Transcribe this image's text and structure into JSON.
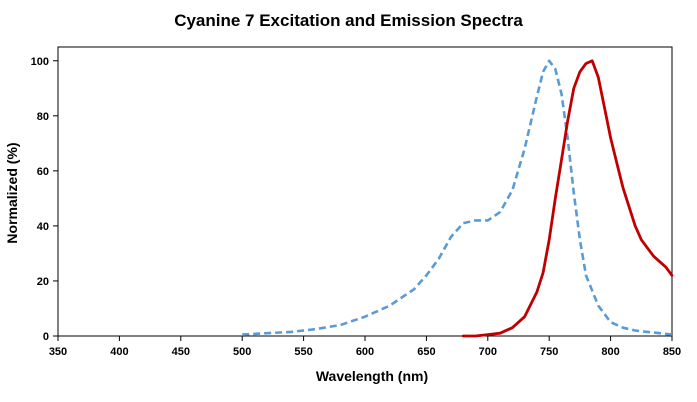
{
  "chart_data": {
    "type": "line",
    "title": "Cyanine 7 Excitation and Emission Spectra",
    "xlabel": "Wavelength (nm)",
    "ylabel": "Normalized (%)",
    "xlim": [
      350,
      850
    ],
    "ylim": [
      0,
      105
    ],
    "xticks": [
      350,
      400,
      450,
      500,
      550,
      600,
      650,
      700,
      750,
      800,
      850
    ],
    "yticks": [
      0,
      20,
      40,
      60,
      80,
      100
    ],
    "grid": false,
    "legend": "none",
    "series": [
      {
        "role": "excitation",
        "color": "#5b9bd5",
        "dash": "dashed",
        "x": [
          500,
          520,
          540,
          560,
          580,
          600,
          620,
          640,
          650,
          660,
          670,
          680,
          690,
          700,
          710,
          720,
          730,
          740,
          745,
          750,
          755,
          760,
          765,
          770,
          775,
          780,
          790,
          800,
          810,
          820,
          830,
          840,
          850
        ],
        "y": [
          0.5,
          1,
          1.5,
          2.5,
          4,
          7,
          11,
          17,
          22,
          28,
          36,
          41,
          42,
          42,
          45,
          53,
          68,
          87,
          96,
          100,
          97,
          88,
          72,
          52,
          35,
          22,
          11,
          5,
          3,
          2,
          1.5,
          1,
          0.5
        ]
      },
      {
        "role": "emission",
        "color": "#c00000",
        "dash": "solid",
        "x": [
          680,
          690,
          700,
          710,
          720,
          730,
          740,
          745,
          750,
          755,
          760,
          765,
          770,
          775,
          780,
          785,
          790,
          795,
          800,
          805,
          810,
          815,
          820,
          825,
          830,
          835,
          840,
          845,
          850
        ],
        "y": [
          0,
          0,
          0.5,
          1,
          3,
          7,
          16,
          23,
          35,
          50,
          64,
          78,
          90,
          96,
          99,
          100,
          94,
          83,
          72,
          63,
          54,
          47,
          40,
          35,
          32,
          29,
          27,
          25,
          22
        ]
      }
    ]
  }
}
